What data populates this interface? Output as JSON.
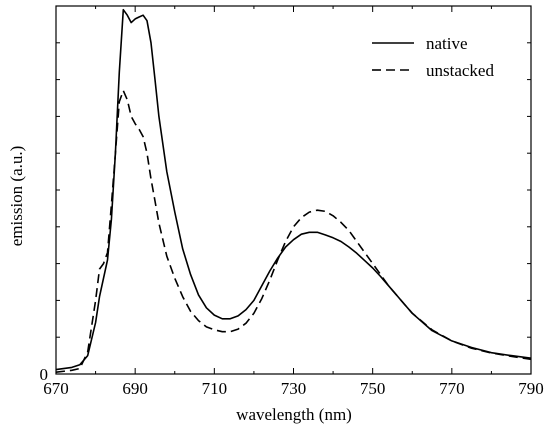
{
  "chart_data": {
    "type": "line",
    "title": "",
    "xlabel": "wavelength (nm)",
    "ylabel": "emission (a.u.)",
    "xlim": [
      670,
      790
    ],
    "ylim": [
      0,
      1.0
    ],
    "xticks": [
      670,
      690,
      710,
      730,
      750,
      770,
      790
    ],
    "xtick_labels": [
      "670",
      "690",
      "710",
      "730",
      "750",
      "770",
      "790"
    ],
    "ytick_labels": [
      {
        "value": 0,
        "label": "0"
      }
    ],
    "minor_yticks": [
      0.1,
      0.2,
      0.3,
      0.4,
      0.5,
      0.6,
      0.7,
      0.8,
      0.9
    ],
    "grid": false,
    "legend": {
      "position": "top-right"
    },
    "series": [
      {
        "name": "native",
        "style": "solid",
        "color": "#000000",
        "x": [
          670,
          674,
          676,
          678,
          680,
          681,
          682,
          683,
          684,
          685,
          686,
          687,
          688,
          689,
          690,
          691,
          692,
          693,
          694,
          695,
          696,
          698,
          700,
          702,
          704,
          706,
          708,
          710,
          712,
          714,
          716,
          718,
          720,
          722,
          724,
          726,
          728,
          730,
          732,
          734,
          736,
          738,
          740,
          742,
          744,
          746,
          748,
          750,
          752,
          754,
          756,
          758,
          760,
          765,
          770,
          775,
          780,
          785,
          790
        ],
        "y": [
          0.012,
          0.018,
          0.025,
          0.05,
          0.14,
          0.21,
          0.26,
          0.31,
          0.42,
          0.6,
          0.82,
          0.99,
          0.975,
          0.955,
          0.965,
          0.97,
          0.975,
          0.96,
          0.9,
          0.8,
          0.7,
          0.55,
          0.44,
          0.34,
          0.27,
          0.215,
          0.18,
          0.16,
          0.15,
          0.15,
          0.158,
          0.175,
          0.2,
          0.24,
          0.28,
          0.315,
          0.345,
          0.365,
          0.38,
          0.385,
          0.385,
          0.378,
          0.37,
          0.36,
          0.345,
          0.328,
          0.308,
          0.288,
          0.265,
          0.24,
          0.215,
          0.19,
          0.165,
          0.118,
          0.09,
          0.072,
          0.058,
          0.05,
          0.043
        ]
      },
      {
        "name": "unstacked",
        "style": "dashed",
        "color": "#000000",
        "x": [
          670,
          674,
          676,
          678,
          680,
          681,
          682,
          683,
          684,
          685,
          686,
          687,
          688,
          689,
          690,
          691,
          692,
          693,
          694,
          695,
          696,
          698,
          700,
          702,
          704,
          706,
          708,
          710,
          712,
          714,
          716,
          718,
          720,
          722,
          724,
          726,
          728,
          730,
          732,
          734,
          736,
          738,
          740,
          742,
          744,
          746,
          748,
          750,
          752,
          754,
          756,
          758,
          760,
          765,
          770,
          775,
          780,
          785,
          790
        ],
        "y": [
          0.005,
          0.01,
          0.015,
          0.06,
          0.2,
          0.285,
          0.3,
          0.33,
          0.46,
          0.6,
          0.74,
          0.77,
          0.745,
          0.7,
          0.68,
          0.665,
          0.645,
          0.6,
          0.53,
          0.47,
          0.41,
          0.32,
          0.26,
          0.21,
          0.17,
          0.145,
          0.128,
          0.12,
          0.115,
          0.115,
          0.122,
          0.138,
          0.165,
          0.205,
          0.255,
          0.31,
          0.36,
          0.4,
          0.425,
          0.44,
          0.445,
          0.442,
          0.43,
          0.412,
          0.39,
          0.36,
          0.33,
          0.3,
          0.27,
          0.24,
          0.215,
          0.19,
          0.165,
          0.12,
          0.09,
          0.07,
          0.057,
          0.048,
          0.04
        ]
      }
    ]
  }
}
